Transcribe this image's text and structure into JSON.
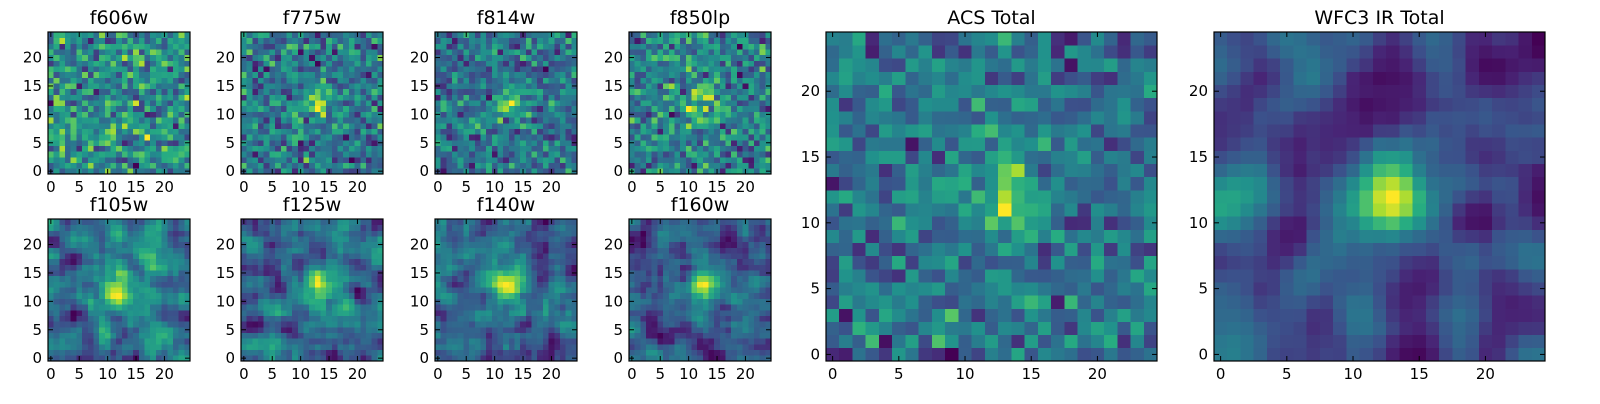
{
  "chart_data": [
    {
      "type": "heatmap",
      "title": "f606w",
      "grid_size": 25,
      "xlim": [
        0,
        24
      ],
      "ylim": [
        0,
        24
      ],
      "x_ticks": [
        0,
        5,
        10,
        15,
        20
      ],
      "y_ticks": [
        0,
        5,
        10,
        15,
        20
      ],
      "xlabel": "",
      "ylabel": "",
      "colormap": "viridis",
      "colorbar": false,
      "source_center": null,
      "seed": 11,
      "noise": 0.95,
      "blur": 0
    },
    {
      "type": "heatmap",
      "title": "f775w",
      "grid_size": 25,
      "xlim": [
        0,
        24
      ],
      "ylim": [
        0,
        24
      ],
      "x_ticks": [
        0,
        5,
        10,
        15,
        20
      ],
      "y_ticks": [
        0,
        5,
        10,
        15,
        20
      ],
      "xlabel": "",
      "ylabel": "",
      "colormap": "viridis",
      "colorbar": false,
      "source_center": [
        13,
        12
      ],
      "seed": 23,
      "noise": 0.85,
      "blur": 0
    },
    {
      "type": "heatmap",
      "title": "f814w",
      "grid_size": 25,
      "xlim": [
        0,
        24
      ],
      "ylim": [
        0,
        24
      ],
      "x_ticks": [
        0,
        5,
        10,
        15,
        20
      ],
      "y_ticks": [
        0,
        5,
        10,
        15,
        20
      ],
      "xlabel": "",
      "ylabel": "",
      "colormap": "viridis",
      "colorbar": false,
      "source_center": [
        13,
        12
      ],
      "seed": 37,
      "noise": 0.8,
      "blur": 0
    },
    {
      "type": "heatmap",
      "title": "f850lp",
      "grid_size": 25,
      "xlim": [
        0,
        24
      ],
      "ylim": [
        0,
        24
      ],
      "x_ticks": [
        0,
        5,
        10,
        15,
        20
      ],
      "y_ticks": [
        0,
        5,
        10,
        15,
        20
      ],
      "xlabel": "",
      "ylabel": "",
      "colormap": "viridis",
      "colorbar": false,
      "source_center": [
        12,
        12
      ],
      "seed": 41,
      "noise": 0.8,
      "blur": 0
    },
    {
      "type": "heatmap",
      "title": "f105w",
      "grid_size": 25,
      "xlim": [
        0,
        24
      ],
      "ylim": [
        0,
        24
      ],
      "x_ticks": [
        0,
        5,
        10,
        15,
        20
      ],
      "y_ticks": [
        0,
        5,
        10,
        15,
        20
      ],
      "xlabel": "",
      "ylabel": "",
      "colormap": "viridis",
      "colorbar": false,
      "source_center": [
        12,
        12
      ],
      "seed": 53,
      "noise": 0.55,
      "blur": 1
    },
    {
      "type": "heatmap",
      "title": "f125w",
      "grid_size": 25,
      "xlim": [
        0,
        24
      ],
      "ylim": [
        0,
        24
      ],
      "x_ticks": [
        0,
        5,
        10,
        15,
        20
      ],
      "y_ticks": [
        0,
        5,
        10,
        15,
        20
      ],
      "xlabel": "",
      "ylabel": "",
      "colormap": "viridis",
      "colorbar": false,
      "source_center": [
        13,
        13
      ],
      "seed": 67,
      "noise": 0.55,
      "blur": 1
    },
    {
      "type": "heatmap",
      "title": "f140w",
      "grid_size": 25,
      "xlim": [
        0,
        24
      ],
      "ylim": [
        0,
        24
      ],
      "x_ticks": [
        0,
        5,
        10,
        15,
        20
      ],
      "y_ticks": [
        0,
        5,
        10,
        15,
        20
      ],
      "xlabel": "",
      "ylabel": "",
      "colormap": "viridis",
      "colorbar": false,
      "source_center": [
        12,
        13
      ],
      "seed": 79,
      "noise": 0.55,
      "blur": 1
    },
    {
      "type": "heatmap",
      "title": "f160w",
      "grid_size": 25,
      "xlim": [
        0,
        24
      ],
      "ylim": [
        0,
        24
      ],
      "x_ticks": [
        0,
        5,
        10,
        15,
        20
      ],
      "y_ticks": [
        0,
        5,
        10,
        15,
        20
      ],
      "xlabel": "",
      "ylabel": "",
      "colormap": "viridis",
      "colorbar": false,
      "source_center": [
        13,
        13
      ],
      "seed": 83,
      "noise": 0.55,
      "blur": 1
    },
    {
      "type": "heatmap",
      "title": "ACS Total",
      "grid_size": 25,
      "xlim": [
        0,
        24
      ],
      "ylim": [
        0,
        24
      ],
      "x_ticks": [
        0,
        5,
        10,
        15,
        20
      ],
      "y_ticks": [
        0,
        5,
        10,
        15,
        20
      ],
      "xlabel": "",
      "ylabel": "",
      "colormap": "viridis",
      "colorbar": false,
      "source_center": [
        13,
        12
      ],
      "seed": 97,
      "noise": 0.6,
      "blur": 0
    },
    {
      "type": "heatmap",
      "title": "WFC3 IR Total",
      "grid_size": 25,
      "xlim": [
        0,
        24
      ],
      "ylim": [
        0,
        24
      ],
      "x_ticks": [
        0,
        5,
        10,
        15,
        20
      ],
      "y_ticks": [
        0,
        5,
        10,
        15,
        20
      ],
      "xlabel": "",
      "ylabel": "",
      "colormap": "viridis",
      "colorbar": false,
      "source_center": [
        13,
        12
      ],
      "seed": 101,
      "noise": 0.35,
      "blur": 2
    }
  ]
}
